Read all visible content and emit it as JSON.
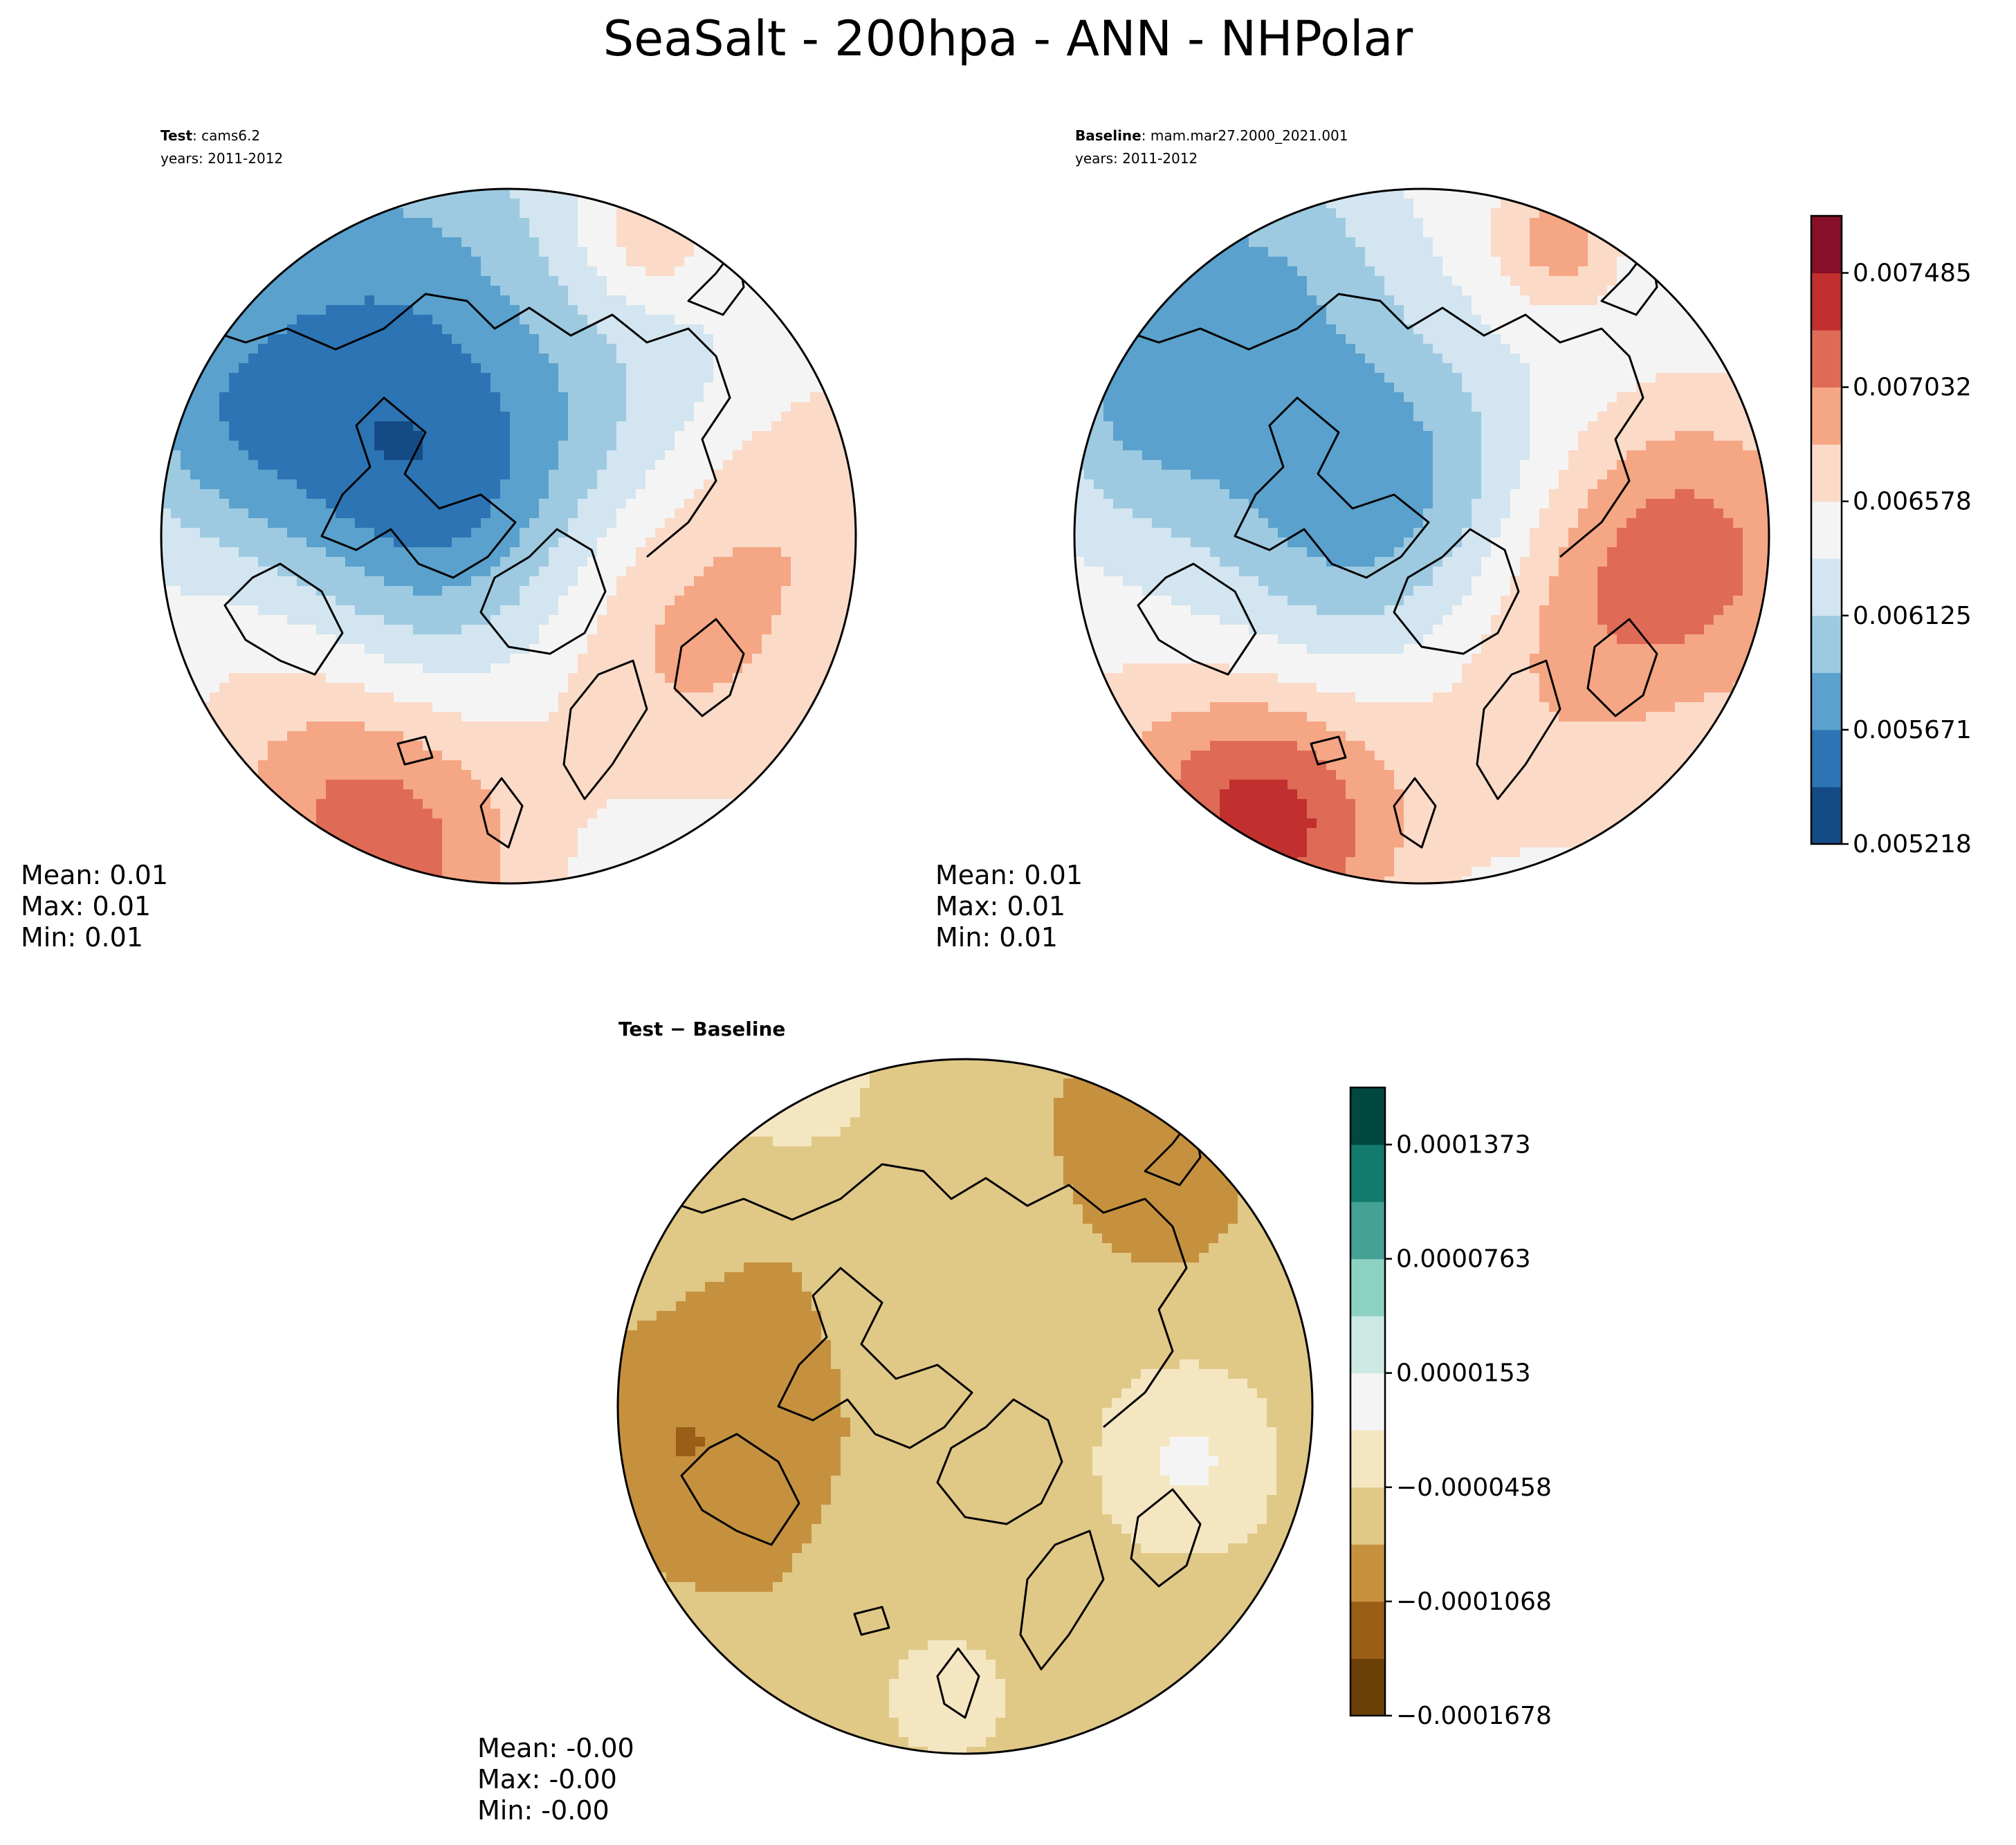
{
  "figure": {
    "title": "SeaSalt - 200hpa - ANN - NHPolar"
  },
  "chart_data": [
    {
      "type": "heatmap",
      "projection": "north-polar-stereographic",
      "title_bold": "Test",
      "title_rest": ": cams6.2",
      "subtitle": "years: 2011-2012",
      "stats": {
        "mean": "Mean:  0.01",
        "max": "Max:  0.01",
        "min": "Min:  0.01"
      },
      "fields": [
        {
          "anchor": [
            0.4,
            0.42
          ],
          "spread": 0.17,
          "level": -4
        },
        {
          "anchor": [
            0.22,
            0.12
          ],
          "spread": 0.2,
          "level": -2.5
        },
        {
          "anchor": [
            0.05,
            0.35
          ],
          "spread": 0.12,
          "level": -1.5
        },
        {
          "anchor": [
            0.8,
            0.55
          ],
          "spread": 0.2,
          "level": 2
        },
        {
          "anchor": [
            0.3,
            0.92
          ],
          "spread": 0.15,
          "level": 3
        },
        {
          "anchor": [
            0.7,
            0.08
          ],
          "spread": 0.07,
          "level": 1.5
        },
        {
          "anchor": [
            0.68,
            0.25
          ],
          "spread": 0.2,
          "level": -1
        }
      ]
    },
    {
      "type": "heatmap",
      "projection": "north-polar-stereographic",
      "title_bold": "Baseline",
      "title_rest": ": mam.mar27.2000_2021.001",
      "subtitle": "years: 2011-2012",
      "stats": {
        "mean": "Mean:  0.01",
        "max": "Max:  0.01",
        "min": "Min:  0.01"
      },
      "fields": [
        {
          "anchor": [
            0.4,
            0.45
          ],
          "spread": 0.16,
          "level": -3.5
        },
        {
          "anchor": [
            0.18,
            0.12
          ],
          "spread": 0.18,
          "level": -2.5
        },
        {
          "anchor": [
            0.08,
            0.3
          ],
          "spread": 0.12,
          "level": -1.5
        },
        {
          "anchor": [
            0.82,
            0.55
          ],
          "spread": 0.18,
          "level": 3
        },
        {
          "anchor": [
            0.28,
            0.9
          ],
          "spread": 0.13,
          "level": 4
        },
        {
          "anchor": [
            0.7,
            0.08
          ],
          "spread": 0.06,
          "level": 2
        },
        {
          "anchor": [
            0.68,
            0.3
          ],
          "spread": 0.18,
          "level": -0.8
        }
      ]
    },
    {
      "type": "heatmap",
      "projection": "north-polar-stereographic",
      "title_bold": "Test",
      "title_rest": " − Baseline",
      "subtitle": "",
      "stats": {
        "mean": "Mean: -0.00",
        "max": "Max: -0.00",
        "min": "Min: -0.00"
      },
      "fields": [
        {
          "anchor": [
            0.15,
            0.55
          ],
          "spread": 0.14,
          "level": -1.6
        },
        {
          "anchor": [
            0.75,
            0.12
          ],
          "spread": 0.1,
          "level": -1.2
        },
        {
          "anchor": [
            0.82,
            0.58
          ],
          "spread": 0.09,
          "level": 1.3
        },
        {
          "anchor": [
            0.25,
            0.05
          ],
          "spread": 0.09,
          "level": 1.0
        },
        {
          "anchor": [
            0.45,
            0.92
          ],
          "spread": 0.06,
          "level": 0.8
        }
      ]
    }
  ],
  "colorbars": [
    {
      "name": "test-baseline-colorbar",
      "colors": [
        "#154b85",
        "#2c74b4",
        "#5aa1cd",
        "#9dcae1",
        "#d2e5f0",
        "#f4f4f4",
        "#fbdac8",
        "#f5a684",
        "#df6b56",
        "#c1302f",
        "#870f27"
      ],
      "ticks": [
        "0.005218",
        "0.005671",
        "0.006125",
        "0.006578",
        "0.007032",
        "0.007485"
      ]
    },
    {
      "name": "difference-colorbar",
      "colors": [
        "#6b4108",
        "#9b5e16",
        "#c6913f",
        "#e0c887",
        "#f5e6c2",
        "#f3f4f3",
        "#cce9e3",
        "#8dd1c2",
        "#45a195",
        "#137a6e",
        "#01493f"
      ],
      "ticks": [
        "−0.0001678",
        "−0.0001068",
        "−0.0000458",
        "0.0000153",
        "0.0000763",
        "0.0001373"
      ]
    }
  ]
}
